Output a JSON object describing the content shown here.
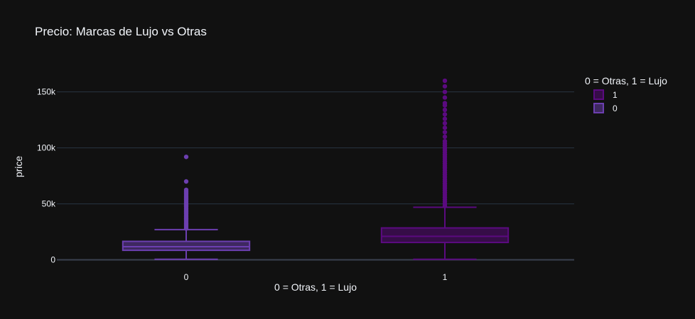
{
  "chart_data": {
    "type": "box",
    "title": "Precio: Marcas de Lujo vs Otras",
    "xlabel": "0 = Otras, 1 = Lujo",
    "ylabel": "price",
    "categories": [
      "0",
      "1"
    ],
    "y_ticks": [
      {
        "value": 0,
        "label": "0"
      },
      {
        "value": 50000,
        "label": "50k"
      },
      {
        "value": 100000,
        "label": "100k"
      },
      {
        "value": 150000,
        "label": "150k"
      }
    ],
    "ylim": [
      -6000,
      184000
    ],
    "grid": true,
    "legend": {
      "title": "0 = Otras, 1 = Lujo",
      "position": "top-right",
      "items": [
        {
          "label": "1",
          "series_index": 1
        },
        {
          "label": "0",
          "series_index": 0
        }
      ]
    },
    "series": [
      {
        "name": "0",
        "category": "0",
        "color": "#6c3fb0",
        "min": 500,
        "q1": 8500,
        "median": 11700,
        "q3": 16500,
        "upper_fence": 27000,
        "outliers": [
          28000,
          29500,
          31000,
          32500,
          34000,
          35500,
          37000,
          38500,
          40000,
          41500,
          43000,
          44500,
          46000,
          47500,
          49000,
          50500,
          52000,
          53500,
          55000,
          56500,
          58000,
          59500,
          61000,
          62500,
          70000,
          92000
        ]
      },
      {
        "name": "1",
        "category": "1",
        "color": "#5b0a80",
        "min": 500,
        "q1": 15500,
        "median": 21000,
        "q3": 28500,
        "upper_fence": 47000,
        "outliers": [
          48000,
          50000,
          52000,
          54000,
          56000,
          58000,
          60000,
          62000,
          64000,
          66000,
          68000,
          70000,
          72000,
          74000,
          76000,
          78000,
          80000,
          82000,
          84000,
          86000,
          88000,
          90000,
          92000,
          94000,
          96000,
          98000,
          100000,
          102000,
          104000,
          106000,
          110000,
          114000,
          118000,
          122000,
          126000,
          130000,
          134000,
          138000,
          140000,
          145000,
          150000,
          155000,
          160000
        ]
      }
    ]
  }
}
